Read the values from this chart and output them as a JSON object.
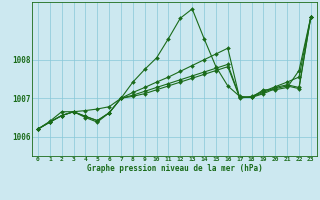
{
  "title": "Graphe pression niveau de la mer (hPa)",
  "bg_color": "#cce8f0",
  "line_color": "#1a6b1a",
  "grid_color": "#88c8d8",
  "ylim": [
    1005.5,
    1009.5
  ],
  "xlim": [
    -0.5,
    23.5
  ],
  "yticks": [
    1006,
    1007,
    1008
  ],
  "xticks": [
    0,
    1,
    2,
    3,
    4,
    5,
    6,
    7,
    8,
    9,
    10,
    11,
    12,
    13,
    14,
    15,
    16,
    17,
    18,
    19,
    20,
    21,
    22,
    23
  ],
  "s1": [
    1006.2,
    1006.4,
    1006.65,
    1006.65,
    1006.5,
    1006.38,
    1006.62,
    1007.0,
    1007.42,
    1007.75,
    1008.05,
    1008.55,
    1009.08,
    1009.32,
    1008.55,
    1007.82,
    1007.32,
    1007.05,
    1007.02,
    1007.22,
    1007.22,
    1007.28,
    1007.72,
    1009.12
  ],
  "s2": [
    1006.2,
    1006.38,
    1006.55,
    1006.65,
    1006.68,
    1006.72,
    1006.78,
    1007.0,
    1007.15,
    1007.28,
    1007.42,
    1007.55,
    1007.7,
    1007.85,
    1008.0,
    1008.15,
    1008.3,
    1007.0,
    1007.05,
    1007.18,
    1007.3,
    1007.42,
    1007.55,
    1009.12
  ],
  "s3": [
    1006.2,
    1006.38,
    1006.55,
    1006.65,
    1006.53,
    1006.42,
    1006.62,
    1007.0,
    1007.08,
    1007.18,
    1007.28,
    1007.38,
    1007.48,
    1007.58,
    1007.68,
    1007.78,
    1007.88,
    1007.03,
    1007.03,
    1007.15,
    1007.28,
    1007.35,
    1007.28,
    1009.12
  ],
  "s4": [
    1006.2,
    1006.38,
    1006.55,
    1006.65,
    1006.53,
    1006.42,
    1006.62,
    1007.0,
    1007.05,
    1007.12,
    1007.22,
    1007.32,
    1007.42,
    1007.52,
    1007.62,
    1007.72,
    1007.82,
    1007.02,
    1007.02,
    1007.12,
    1007.25,
    1007.32,
    1007.25,
    1009.12
  ]
}
